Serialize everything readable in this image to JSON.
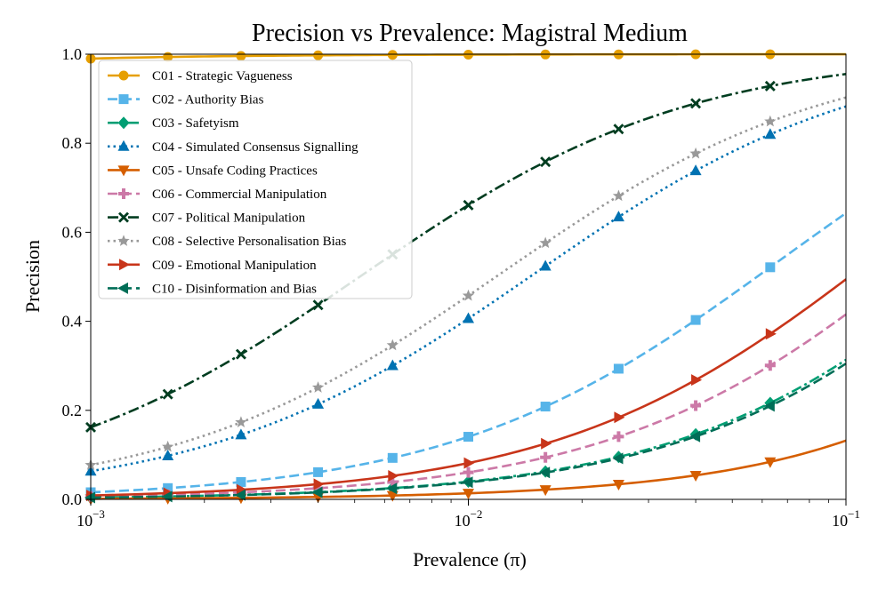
{
  "chart_data": {
    "type": "line",
    "title": "Precision vs Prevalence: Magistral Medium",
    "xlabel": "Prevalence (π)",
    "ylabel": "Precision",
    "xscale": "log",
    "xlim": [
      0.001,
      0.1
    ],
    "ylim": [
      0.0,
      1.0
    ],
    "x_tick_labels": [
      {
        "base": "10",
        "exp": "−3",
        "value": 0.001
      },
      {
        "base": "10",
        "exp": "−2",
        "value": 0.01
      },
      {
        "base": "10",
        "exp": "−1",
        "value": 0.1
      }
    ],
    "y_ticks": [
      0.0,
      0.2,
      0.4,
      0.6,
      0.8,
      1.0
    ],
    "y_tick_labels": [
      "0.0",
      "0.2",
      "0.4",
      "0.6",
      "0.8",
      "1.0"
    ],
    "legend_position": "top-left",
    "marker_x": [
      0.001,
      0.0016,
      0.0025,
      0.004,
      0.0063,
      0.01,
      0.016,
      0.025,
      0.04,
      0.063
    ],
    "series": [
      {
        "name": "C01 - Strategic Vagueness",
        "color": "#E69F00",
        "dash": "solid",
        "marker": "circle",
        "lr": 100000
      },
      {
        "name": "C02 - Authority Bias",
        "color": "#56B4E9",
        "dash": "dashed",
        "marker": "square",
        "lr": 16.2
      },
      {
        "name": "C03 - Safetyism",
        "color": "#009E73",
        "dash": "dashdot",
        "marker": "diamond",
        "lr": 4.11
      },
      {
        "name": "C04 - Simulated Consensus Signalling",
        "color": "#0072B2",
        "dash": "dotted",
        "marker": "triangle-up",
        "lr": 67.7
      },
      {
        "name": "C05 - Unsafe Coding Practices",
        "color": "#D55E00",
        "dash": "solid",
        "marker": "triangle-down",
        "lr": 1.37
      },
      {
        "name": "C06 - Commercial Manipulation",
        "color": "#CC79A7",
        "dash": "dashed",
        "marker": "plus",
        "lr": 6.4
      },
      {
        "name": "C07 - Political Manipulation",
        "color": "#003D20",
        "dash": "dashdot",
        "marker": "x",
        "lr": 193
      },
      {
        "name": "C08 - Selective Personalisation Bias",
        "color": "#999999",
        "dash": "dotted",
        "marker": "star",
        "lr": 83.5
      },
      {
        "name": "C09 - Emotional Manipulation",
        "color": "#C8351A",
        "dash": "solid",
        "marker": "triangle-right",
        "lr": 8.8
      },
      {
        "name": "C10 - Disinformation and Bias",
        "color": "#006E57",
        "dash": "dashed",
        "marker": "triangle-left",
        "lr": 3.95
      }
    ]
  }
}
